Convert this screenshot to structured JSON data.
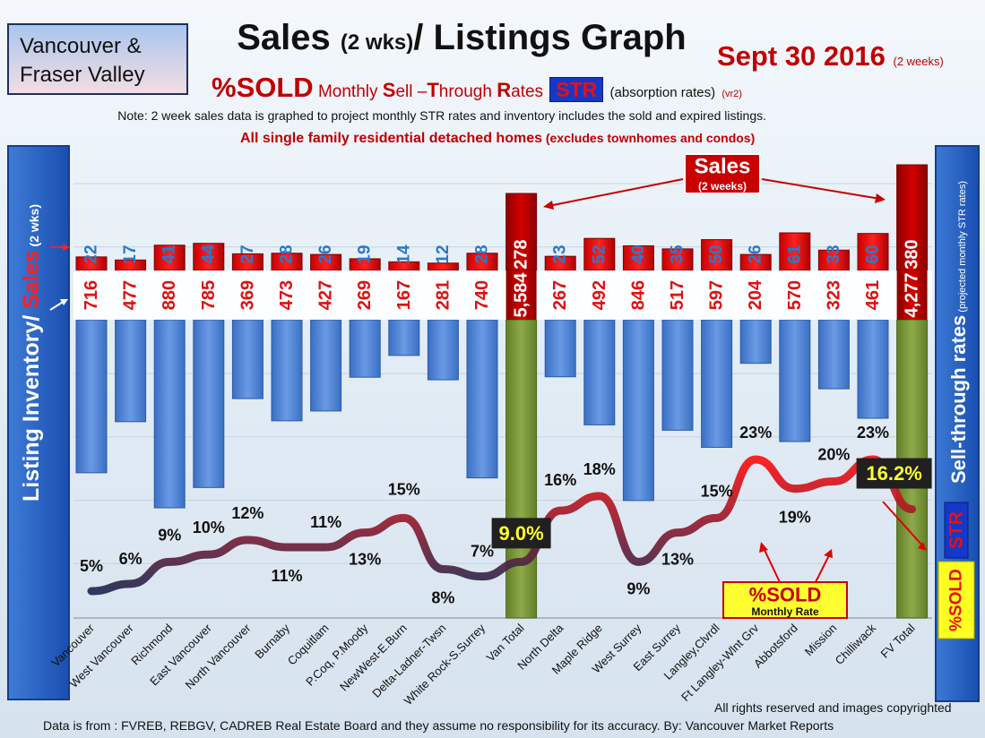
{
  "header": {
    "region_line1": "Vancouver &",
    "region_line2": "Fraser Valley",
    "title_main": "Sales ",
    "title_small": "(2 wks)",
    "title_rest": "/ Listings Graph",
    "date_main": "Sept 30 2016",
    "date_small": "(2 weeks)",
    "sub_pct": "%SOLD",
    "sub_monthly": " Monthly ",
    "sub_s": "S",
    "sub_ell": "ell –",
    "sub_t": "T",
    "sub_hrough": "hrough ",
    "sub_r": "R",
    "sub_ates": "ates",
    "sub_str": "STR",
    "sub_absorb": "(absorption rates)",
    "sub_vr": "(vr2)",
    "note": "Note: 2 week sales data is graphed to project monthly STR rates and inventory includes the sold and expired listings.",
    "note2_main": "All single family residential detached homes",
    "note2_small": " (excludes townhomes and condos)"
  },
  "chart_data": {
    "type": "bar",
    "categories": [
      "Vancouver",
      "West Vancouver",
      "Richmond",
      "East Vancouver",
      "North Vancouver",
      "Burnaby",
      "Coquitlam",
      "P.Coq, P.Moody",
      "NewWest-E.Burn",
      "Delta-Ladner-Twsn",
      "White Rock-S.Surrey",
      "Van Total",
      "North Delta",
      "Maple Ridge",
      "West Surrey",
      "East Surrey",
      "Langley,Clvrdl",
      "Ft Langley-Wlnt Grv",
      "Abbotsford",
      "Mission",
      "Chilliwack",
      "FV Total"
    ],
    "sales_label": [
      "22",
      "17",
      "41",
      "44",
      "27",
      "28",
      "26",
      "19",
      "14",
      "12",
      "28",
      "278",
      "23",
      "52",
      "40",
      "35",
      "50",
      "26",
      "61",
      "33",
      "60",
      "380"
    ],
    "listing_label": [
      "716",
      "477",
      "880",
      "785",
      "369",
      "473",
      "427",
      "269",
      "167",
      "281",
      "740",
      "5,584",
      "267",
      "492",
      "846",
      "517",
      "597",
      "204",
      "570",
      "323",
      "461",
      "4,277"
    ],
    "series": [
      {
        "name": "Sales",
        "values": [
          22,
          17,
          41,
          44,
          27,
          28,
          26,
          19,
          14,
          12,
          28,
          278,
          23,
          52,
          40,
          35,
          50,
          26,
          61,
          33,
          60,
          380
        ]
      },
      {
        "name": "Listing Inventory",
        "values": [
          716,
          477,
          880,
          785,
          369,
          473,
          427,
          269,
          167,
          281,
          740,
          5584,
          267,
          492,
          846,
          517,
          597,
          204,
          570,
          323,
          461,
          4277
        ]
      },
      {
        "name": "%SOLD",
        "values": [
          5,
          6,
          9,
          10,
          12,
          11,
          11,
          13,
          15,
          8,
          7,
          9.0,
          16,
          18,
          9,
          13,
          15,
          23,
          19,
          20,
          23,
          16.2
        ]
      }
    ],
    "pct_labels": [
      "5%",
      "6%",
      "9%",
      "10%",
      "12%",
      "11%",
      "11%",
      "13%",
      "15%",
      "8%",
      "7%",
      "9.0%",
      "16%",
      "18%",
      "9%",
      "13%",
      "15%",
      "23%",
      "19%",
      "20%",
      "23%",
      "16.2%"
    ],
    "total_indices": [
      11,
      21
    ],
    "left_axis_label_a": "Listing Inventory/ ",
    "left_axis_label_b": "Sales",
    "left_axis_label_c": " (2 wks)",
    "right_axis_label_a": "Sell-through rates",
    "right_axis_label_b": " (projected monthly STR rates)",
    "right_axis_str": "STR",
    "right_axis_sold": "%SOLD",
    "sales_callout": "Sales",
    "sales_callout_small": "(2 weeks)",
    "sold_callout": "%SOLD",
    "sold_callout_small": "Monthly Rate",
    "colors": {
      "sales": "#e01010",
      "inventory": "#4f86d8",
      "total": "#7a9a3a",
      "line_low": "#1f2a50",
      "line_high": "#ff1010"
    }
  },
  "footer": {
    "rights": "All rights reserved and  images copyrighted",
    "source": "Data is from : FVREB, REBGV, CADREB Real Estate Board and they assume no responsibility for its accuracy. By: Vancouver Market Reports"
  }
}
